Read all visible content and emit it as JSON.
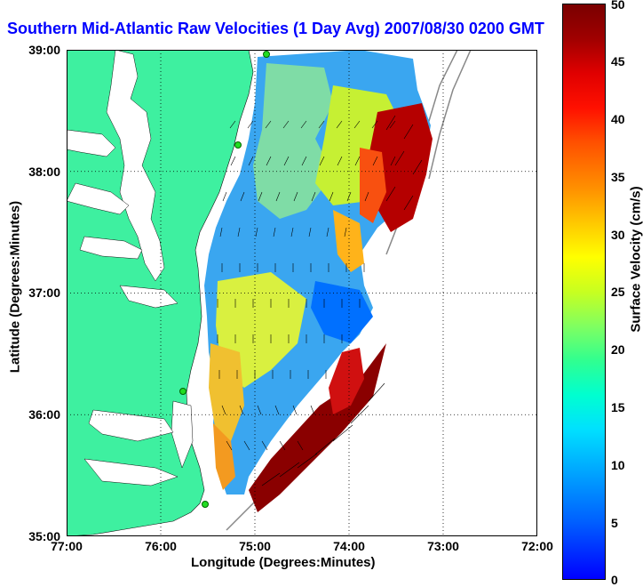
{
  "title": "Southern Mid-Atlantic Raw Velocities (1 Day Avg) 2007/08/30 0200 GMT",
  "xlabel": "Longitude (Degrees:Minutes)",
  "ylabel": "Latitude (Degrees:Minutes)",
  "colorbar": {
    "label": "Surface Velocity (cm/s)",
    "ticks": [
      "0",
      "5",
      "10",
      "15",
      "20",
      "25",
      "30",
      "35",
      "40",
      "45",
      "50"
    ],
    "min": 0,
    "max": 50
  },
  "x_ticks": [
    "77:00",
    "76:00",
    "75:00",
    "74:00",
    "73:00",
    "72:00"
  ],
  "y_ticks": [
    "39:00",
    "38:00",
    "37:00",
    "36:00",
    "35:00"
  ],
  "colors": {
    "land": "#3ef0a0",
    "water": "#ffffff",
    "title": "#0000ff",
    "station": "#22dd22"
  }
}
